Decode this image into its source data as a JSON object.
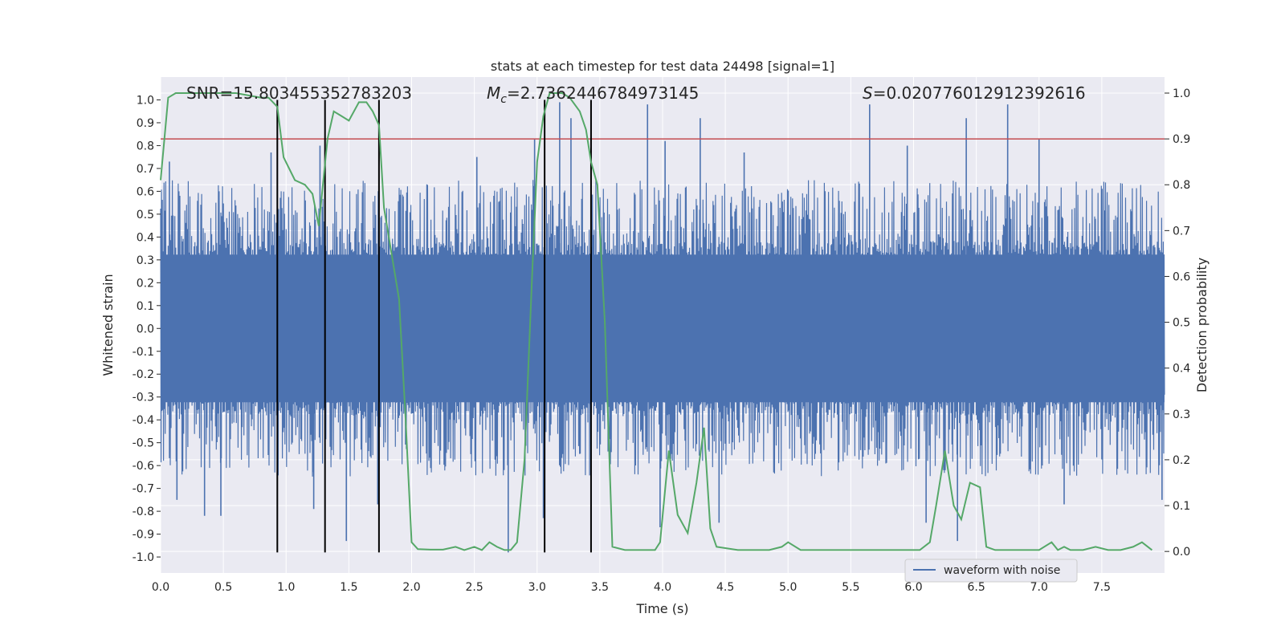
{
  "chart_data": {
    "type": "line",
    "title": "stats at each timestep for test data 24498 [signal=1]",
    "xlabel": "Time (s)",
    "ylabel_left": "Whitened strain",
    "ylabel_right": "Detection probability",
    "xlim": [
      0.0,
      8.0
    ],
    "ylim_left": [
      -1.07,
      1.1
    ],
    "ylim_right": [
      -0.047,
      1.035
    ],
    "x_ticks": [
      "0.0",
      "0.5",
      "1.0",
      "1.5",
      "2.0",
      "2.5",
      "3.0",
      "3.5",
      "4.0",
      "4.5",
      "5.0",
      "5.5",
      "6.0",
      "6.5",
      "7.0",
      "7.5"
    ],
    "y_ticks_left": [
      "-1.0",
      "-0.9",
      "-0.8",
      "-0.7",
      "-0.6",
      "-0.5",
      "-0.4",
      "-0.3",
      "-0.2",
      "-0.1",
      "0.0",
      "0.1",
      "0.2",
      "0.3",
      "0.4",
      "0.5",
      "0.6",
      "0.7",
      "0.8",
      "0.9",
      "1.0"
    ],
    "y_ticks_right": [
      "0.0",
      "0.1",
      "0.2",
      "0.3",
      "0.4",
      "0.5",
      "0.6",
      "0.7",
      "0.8",
      "0.9",
      "1.0"
    ],
    "grid": true,
    "legend": {
      "position": "lower-right",
      "entries": [
        "waveform with noise"
      ]
    },
    "annotations": {
      "snr": "SNR=15.803455352783203",
      "mc_symbol": "M",
      "mc_sub": "c",
      "mc_value": "=2.7362446784973145",
      "s_symbol": "S",
      "s_value": "=0.020776012912392616"
    },
    "threshold": {
      "value": 0.9,
      "axis": "right",
      "color": "#c44e52"
    },
    "vertical_lines": [
      0.93,
      1.31,
      1.74,
      3.06,
      3.43
    ],
    "series": [
      {
        "name": "waveform with noise",
        "axis": "left",
        "color": "#4c72b0",
        "kind": "noise",
        "x_range": [
          0.0,
          8.0
        ],
        "core_amplitude": 0.38,
        "typical_peak": 0.65,
        "spikes": [
          {
            "x": 0.07,
            "y": 0.73
          },
          {
            "x": 0.13,
            "y": -0.75
          },
          {
            "x": 0.35,
            "y": -0.82
          },
          {
            "x": 0.48,
            "y": -0.82
          },
          {
            "x": 0.88,
            "y": 0.77
          },
          {
            "x": 1.22,
            "y": -0.79
          },
          {
            "x": 1.27,
            "y": 0.8
          },
          {
            "x": 1.48,
            "y": -0.93
          },
          {
            "x": 1.73,
            "y": -0.77
          },
          {
            "x": 2.52,
            "y": 0.75
          },
          {
            "x": 2.77,
            "y": -0.98
          },
          {
            "x": 2.98,
            "y": 0.83
          },
          {
            "x": 3.05,
            "y": -0.83
          },
          {
            "x": 3.18,
            "y": 0.99
          },
          {
            "x": 3.27,
            "y": 0.92
          },
          {
            "x": 3.88,
            "y": 0.98
          },
          {
            "x": 3.98,
            "y": -0.87
          },
          {
            "x": 4.02,
            "y": 0.82
          },
          {
            "x": 4.3,
            "y": 0.92
          },
          {
            "x": 4.45,
            "y": -0.85
          },
          {
            "x": 4.65,
            "y": 0.77
          },
          {
            "x": 5.65,
            "y": 0.98
          },
          {
            "x": 5.95,
            "y": 0.8
          },
          {
            "x": 6.1,
            "y": -0.85
          },
          {
            "x": 6.35,
            "y": -0.93
          },
          {
            "x": 6.42,
            "y": 0.92
          },
          {
            "x": 6.75,
            "y": 0.98
          },
          {
            "x": 7.0,
            "y": 0.83
          },
          {
            "x": 7.2,
            "y": -0.77
          },
          {
            "x": 7.98,
            "y": -0.75
          }
        ]
      },
      {
        "name": "Detection probability",
        "axis": "right",
        "color": "#55a868",
        "x": [
          0.0,
          0.06,
          0.12,
          0.25,
          0.4,
          0.6,
          0.8,
          0.86,
          0.93,
          0.98,
          1.07,
          1.15,
          1.21,
          1.26,
          1.33,
          1.38,
          1.44,
          1.5,
          1.58,
          1.64,
          1.69,
          1.74,
          1.78,
          1.84,
          1.9,
          1.95,
          2.0,
          2.05,
          2.15,
          2.25,
          2.35,
          2.42,
          2.5,
          2.56,
          2.62,
          2.68,
          2.74,
          2.79,
          2.84,
          2.9,
          2.96,
          3.0,
          3.05,
          3.1,
          3.15,
          3.2,
          3.26,
          3.34,
          3.39,
          3.43,
          3.48,
          3.54,
          3.6,
          3.7,
          3.85,
          3.94,
          3.98,
          4.05,
          4.12,
          4.2,
          4.27,
          4.33,
          4.38,
          4.43,
          4.6,
          4.85,
          4.95,
          5.0,
          5.1,
          5.4,
          5.9,
          6.05,
          6.13,
          6.18,
          6.25,
          6.32,
          6.38,
          6.45,
          6.53,
          6.58,
          6.65,
          6.75,
          7.0,
          7.1,
          7.15,
          7.2,
          7.25,
          7.35,
          7.45,
          7.55,
          7.65,
          7.75,
          7.82,
          7.9
        ],
        "values": [
          0.81,
          0.99,
          1.0,
          1.0,
          1.0,
          1.0,
          0.99,
          0.99,
          0.97,
          0.86,
          0.81,
          0.8,
          0.78,
          0.71,
          0.9,
          0.96,
          0.95,
          0.94,
          0.98,
          0.98,
          0.96,
          0.93,
          0.75,
          0.65,
          0.55,
          0.3,
          0.02,
          0.005,
          0.004,
          0.004,
          0.01,
          0.003,
          0.01,
          0.003,
          0.02,
          0.01,
          0.003,
          0.003,
          0.02,
          0.2,
          0.6,
          0.85,
          0.95,
          1.0,
          1.0,
          1.0,
          0.99,
          0.96,
          0.92,
          0.85,
          0.8,
          0.5,
          0.01,
          0.003,
          0.003,
          0.003,
          0.02,
          0.22,
          0.08,
          0.04,
          0.15,
          0.27,
          0.05,
          0.01,
          0.003,
          0.003,
          0.01,
          0.02,
          0.003,
          0.003,
          0.003,
          0.003,
          0.02,
          0.1,
          0.22,
          0.1,
          0.07,
          0.15,
          0.14,
          0.01,
          0.003,
          0.003,
          0.003,
          0.02,
          0.003,
          0.01,
          0.003,
          0.003,
          0.01,
          0.003,
          0.003,
          0.01,
          0.02,
          0.003
        ]
      }
    ]
  }
}
